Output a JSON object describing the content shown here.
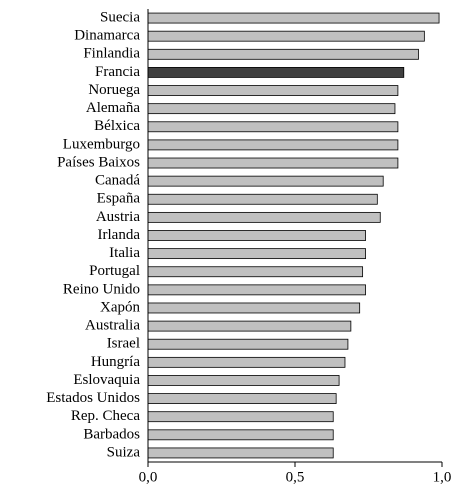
{
  "chart_data": {
    "type": "barh",
    "categories": [
      "Suecia",
      "Dinamarca",
      "Finlandia",
      "Francia",
      "Noruega",
      "Alemaña",
      "Bélxica",
      "Luxemburgo",
      "Países Baixos",
      "Canadá",
      "España",
      "Austria",
      "Irlanda",
      "Italia",
      "Portugal",
      "Reino Unido",
      "Xapón",
      "Australia",
      "Israel",
      "Hungría",
      "Eslovaquia",
      "Estados Unidos",
      "Rep. Checa",
      "Barbados",
      "Suiza"
    ],
    "values": [
      0.99,
      0.94,
      0.92,
      0.87,
      0.85,
      0.84,
      0.85,
      0.85,
      0.85,
      0.8,
      0.78,
      0.79,
      0.74,
      0.74,
      0.73,
      0.74,
      0.72,
      0.69,
      0.68,
      0.67,
      0.65,
      0.64,
      0.63,
      0.63,
      0.63
    ],
    "colors": [
      "#c0c0c0",
      "#c0c0c0",
      "#c0c0c0",
      "#404040",
      "#c0c0c0",
      "#c0c0c0",
      "#c0c0c0",
      "#c0c0c0",
      "#c0c0c0",
      "#c0c0c0",
      "#c0c0c0",
      "#c0c0c0",
      "#c0c0c0",
      "#c0c0c0",
      "#c0c0c0",
      "#c0c0c0",
      "#c0c0c0",
      "#c0c0c0",
      "#c0c0c0",
      "#c0c0c0",
      "#c0c0c0",
      "#c0c0c0",
      "#c0c0c0",
      "#c0c0c0",
      "#c0c0c0"
    ],
    "xlim": [
      0,
      1
    ],
    "xticks": [
      {
        "value": 0,
        "label": "0,0"
      },
      {
        "value": 0.5,
        "label": "0,5"
      },
      {
        "value": 1,
        "label": "1,0"
      }
    ],
    "grid": false
  }
}
